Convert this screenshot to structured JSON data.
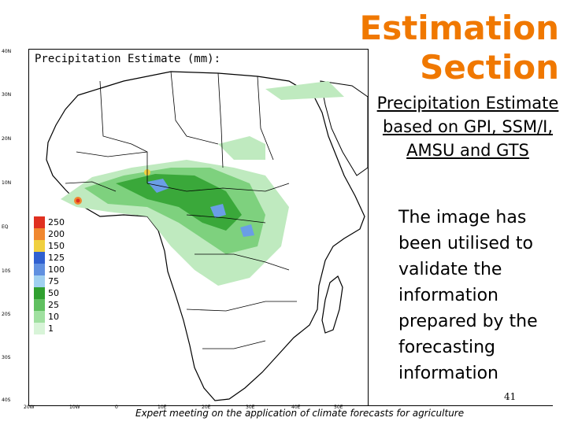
{
  "title_lines": [
    "Estimation",
    "Section"
  ],
  "subtitle": "Precipitation Estimate based on GPI, SSM/I, AMSU and GTS",
  "body_text": "The image has been utilised to validate the information prepared by the forecasting information",
  "page_number": "41",
  "footer": "Expert meeting on the application of climate forecasts for agriculture",
  "map": {
    "caption": "Precipitation Estimate (mm):",
    "lat_labels": [
      "40N",
      "30N",
      "20N",
      "10N",
      "EQ",
      "10S",
      "20S",
      "30S",
      "40S"
    ],
    "lon_labels": [
      "20W",
      "10W",
      "0",
      "10E",
      "20E",
      "30E",
      "40E",
      "50E"
    ],
    "legend": [
      {
        "label": "250",
        "color": "#e03020"
      },
      {
        "label": "200",
        "color": "#f08830"
      },
      {
        "label": "150",
        "color": "#f0d040"
      },
      {
        "label": "125",
        "color": "#3060d0"
      },
      {
        "label": "100",
        "color": "#6090e0"
      },
      {
        "label": "75",
        "color": "#a0d0f0"
      },
      {
        "label": "50",
        "color": "#30a030"
      },
      {
        "label": "25",
        "color": "#60c060"
      },
      {
        "label": "10",
        "color": "#a0e0a0"
      },
      {
        "label": "1",
        "color": "#d8f4d8"
      }
    ]
  }
}
